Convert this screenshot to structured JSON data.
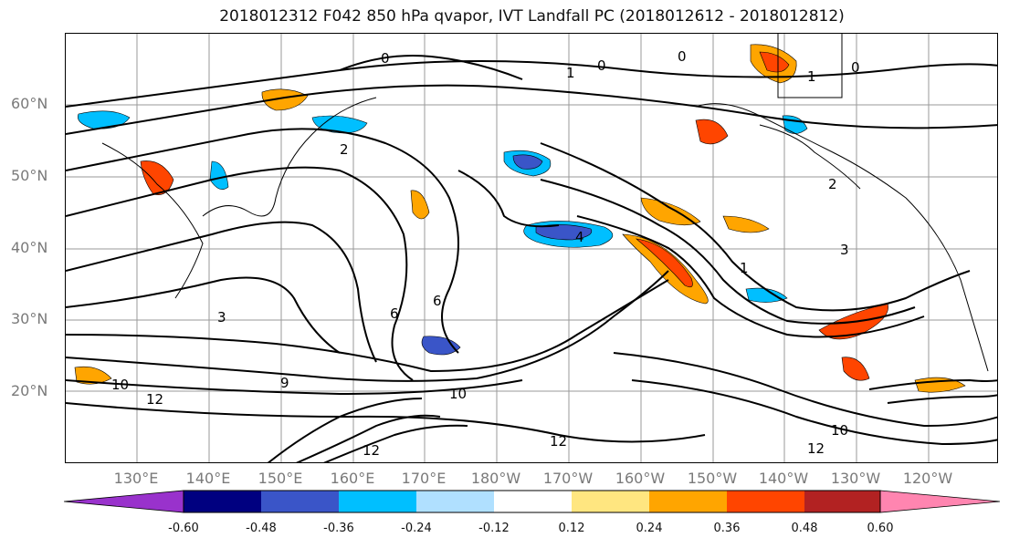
{
  "title": "2018012312 F042 850 hPa qvapor, IVT Landfall PC (2018012612 - 2018012812)",
  "latitude_labels": [
    "60°N",
    "50°N",
    "40°N",
    "30°N",
    "20°N"
  ],
  "longitude_labels": [
    "130°E",
    "140°E",
    "150°E",
    "160°E",
    "170°E",
    "180°W",
    "170°W",
    "160°W",
    "150°W",
    "140°W",
    "130°W",
    "120°W"
  ],
  "contour_labels": [
    "0",
    "0",
    "0",
    "0",
    "1",
    "1",
    "1",
    "2",
    "2",
    "3",
    "3",
    "4",
    "6",
    "6",
    "9",
    "10",
    "10",
    "10",
    "12",
    "12",
    "12",
    "12"
  ],
  "colorbar": {
    "ticks": [
      "-0.60",
      "-0.48",
      "-0.36",
      "-0.24",
      "-0.12",
      "0.12",
      "0.24",
      "0.36",
      "0.48",
      "0.60"
    ],
    "colors": [
      "#9932CC",
      "#000080",
      "#3A55C8",
      "#00BFFF",
      "#B0E0FF",
      "#FFFFFF",
      "#FFE680",
      "#FFA500",
      "#FF4500",
      "#B22222",
      "#FF85B0"
    ]
  }
}
